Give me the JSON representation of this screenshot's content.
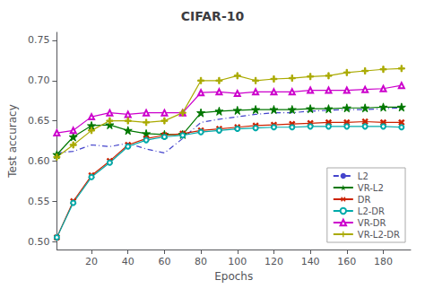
{
  "chart_data": {
    "type": "line",
    "title": "CIFAR-10",
    "x_label": "Epochs",
    "y_label": "Test accuracy",
    "x": [
      1,
      10,
      20,
      30,
      40,
      50,
      60,
      70,
      80,
      90,
      100,
      110,
      120,
      130,
      140,
      150,
      160,
      170,
      180,
      190
    ],
    "xlim": [
      1,
      195
    ],
    "xticks": [
      20,
      40,
      60,
      80,
      100,
      120,
      140,
      160,
      180
    ],
    "ylim": [
      0.49,
      0.76
    ],
    "yticks": [
      {
        "value": 0.5,
        "label": "0.50"
      },
      {
        "value": 0.55,
        "label": "0.55"
      },
      {
        "value": 0.6,
        "label": "0.60"
      },
      {
        "value": 0.65,
        "label": "0.65"
      },
      {
        "value": 0.7,
        "label": "0.70"
      },
      {
        "value": 0.75,
        "label": "0.75"
      }
    ],
    "grid": false,
    "legend": "lower right",
    "series": [
      {
        "name": "L2",
        "color": "#4444cc",
        "line_style": "dashdot",
        "marker": "none",
        "values": [
          0.61,
          0.612,
          0.62,
          0.618,
          0.622,
          0.615,
          0.61,
          0.628,
          0.648,
          0.652,
          0.655,
          0.658,
          0.66,
          0.66,
          0.662,
          0.663,
          0.664,
          0.664,
          0.665,
          0.666
        ]
      },
      {
        "name": "VR-L2",
        "color": "#007700",
        "line_style": "solid",
        "marker": "star",
        "values": [
          0.608,
          0.63,
          0.644,
          0.645,
          0.638,
          0.634,
          0.633,
          0.633,
          0.66,
          0.662,
          0.663,
          0.664,
          0.664,
          0.664,
          0.665,
          0.665,
          0.666,
          0.666,
          0.667,
          0.667
        ]
      },
      {
        "name": "DR",
        "color": "#cc2200",
        "line_style": "solid",
        "marker": "x",
        "values": [
          0.505,
          0.55,
          0.582,
          0.6,
          0.62,
          0.628,
          0.632,
          0.634,
          0.638,
          0.64,
          0.642,
          0.644,
          0.645,
          0.646,
          0.647,
          0.648,
          0.648,
          0.649,
          0.648,
          0.648
        ]
      },
      {
        "name": "L2-DR",
        "color": "#00aaaa",
        "line_style": "solid",
        "marker": "circle",
        "values": [
          0.505,
          0.548,
          0.58,
          0.598,
          0.618,
          0.626,
          0.63,
          0.632,
          0.636,
          0.638,
          0.64,
          0.641,
          0.642,
          0.642,
          0.643,
          0.643,
          0.643,
          0.643,
          0.643,
          0.642
        ]
      },
      {
        "name": "VR-DR",
        "color": "#cc00cc",
        "line_style": "solid",
        "marker": "triangle",
        "values": [
          0.635,
          0.638,
          0.655,
          0.66,
          0.658,
          0.66,
          0.66,
          0.66,
          0.685,
          0.686,
          0.684,
          0.686,
          0.686,
          0.686,
          0.688,
          0.688,
          0.688,
          0.689,
          0.69,
          0.694
        ]
      },
      {
        "name": "VR-L2-DR",
        "color": "#aaaa00",
        "line_style": "solid",
        "marker": "plus",
        "values": [
          0.605,
          0.62,
          0.638,
          0.65,
          0.65,
          0.648,
          0.65,
          0.66,
          0.7,
          0.7,
          0.706,
          0.7,
          0.702,
          0.703,
          0.705,
          0.706,
          0.71,
          0.712,
          0.714,
          0.715
        ]
      }
    ]
  }
}
